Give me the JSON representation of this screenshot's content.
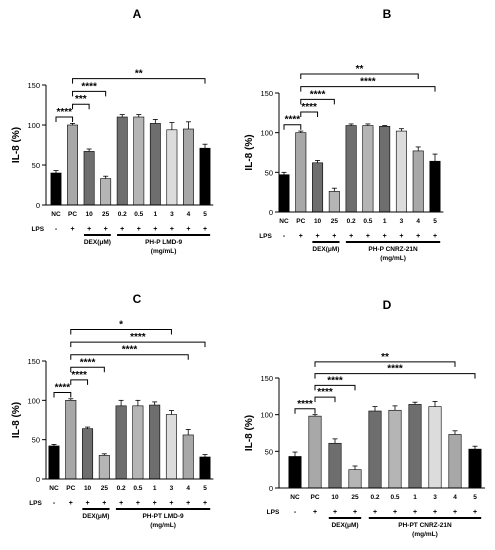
{
  "chart_data": [
    {
      "type": "bar",
      "title": "A",
      "ylabel": "IL-8 (%)",
      "xlabel": "",
      "ylim": [
        0,
        150
      ],
      "yticks": [
        "0",
        "50",
        "100",
        "150"
      ],
      "categories": [
        "NC",
        "PC",
        "10",
        "25",
        "0.2",
        "0.5",
        "1",
        "3",
        "4",
        "5"
      ],
      "values": [
        40,
        100,
        67,
        33,
        110,
        110,
        102,
        94,
        95,
        71
      ],
      "errors": [
        3,
        2,
        3,
        3,
        3,
        3,
        5,
        9,
        9,
        5
      ],
      "colors": [
        "#000000",
        "#a8a8a8",
        "#6e6e6e",
        "#b5b5b5",
        "#6e6e6e",
        "#b5b5b5",
        "#6e6e6e",
        "#dcdcdc",
        "#a8a8a8",
        "#000000"
      ],
      "lps_label": "LPS",
      "lps_signs": [
        "-",
        "+",
        "+",
        "+",
        "+",
        "+",
        "+",
        "+",
        "+",
        "+"
      ],
      "group_labels": [
        {
          "from": 2,
          "to": 3,
          "lines": [
            "DEX(μM)"
          ]
        },
        {
          "from": 4,
          "to": 9,
          "lines": [
            "PH-P LMD-9",
            "(mg/mL)"
          ]
        }
      ],
      "sig": [
        {
          "from": 0,
          "to": 1,
          "label": "****"
        },
        {
          "from": 1,
          "to": 2,
          "label": "***"
        },
        {
          "from": 1,
          "to": 3,
          "label": "****"
        },
        {
          "from": 1,
          "to": 9,
          "label": "**"
        }
      ]
    },
    {
      "type": "bar",
      "title": "B",
      "ylabel": "IL-8 (%)",
      "xlabel": "",
      "ylim": [
        0,
        150
      ],
      "yticks": [
        "0",
        "50",
        "100",
        "150"
      ],
      "categories": [
        "NC",
        "PC",
        "10",
        "25",
        "0.2",
        "0.5",
        "1",
        "3",
        "4",
        "5"
      ],
      "values": [
        47,
        100,
        62,
        26,
        109,
        109,
        108,
        102,
        77,
        64
      ],
      "errors": [
        3,
        2,
        3,
        4,
        2,
        2,
        1,
        3,
        5,
        9
      ],
      "colors": [
        "#000000",
        "#a8a8a8",
        "#6e6e6e",
        "#b5b5b5",
        "#6e6e6e",
        "#b5b5b5",
        "#6e6e6e",
        "#dcdcdc",
        "#a8a8a8",
        "#000000"
      ],
      "lps_label": "LPS",
      "lps_signs": [
        "-",
        "+",
        "+",
        "+",
        "+",
        "+",
        "+",
        "+",
        "+",
        "+"
      ],
      "group_labels": [
        {
          "from": 2,
          "to": 3,
          "lines": [
            "DEX(μM)"
          ]
        },
        {
          "from": 4,
          "to": 9,
          "lines": [
            "PH-P CNRZ-21N",
            "(mg/mL)"
          ]
        }
      ],
      "sig": [
        {
          "from": 0,
          "to": 1,
          "label": "****"
        },
        {
          "from": 1,
          "to": 2,
          "label": "****"
        },
        {
          "from": 1,
          "to": 3,
          "label": "****"
        },
        {
          "from": 1,
          "to": 9,
          "label": "****"
        },
        {
          "from": 1,
          "to": 8,
          "label": "**"
        }
      ]
    },
    {
      "type": "bar",
      "title": "C",
      "ylabel": "IL-8 (%)",
      "xlabel": "",
      "ylim": [
        0,
        150
      ],
      "yticks": [
        "0",
        "50",
        "100",
        "150"
      ],
      "categories": [
        "NC",
        "PC",
        "10",
        "25",
        "0.2",
        "0.5",
        "1",
        "3",
        "4",
        "5"
      ],
      "values": [
        42,
        100,
        64,
        30,
        93,
        93,
        94,
        82,
        56,
        28
      ],
      "errors": [
        2,
        2,
        2,
        2,
        7,
        7,
        4,
        5,
        7,
        3
      ],
      "colors": [
        "#000000",
        "#a8a8a8",
        "#6e6e6e",
        "#b5b5b5",
        "#6e6e6e",
        "#b5b5b5",
        "#6e6e6e",
        "#dcdcdc",
        "#a8a8a8",
        "#000000"
      ],
      "lps_label": "LPS",
      "lps_signs": [
        "-",
        "+",
        "+",
        "+",
        "+",
        "+",
        "+",
        "+",
        "+",
        "+"
      ],
      "group_labels": [
        {
          "from": 2,
          "to": 3,
          "lines": [
            "DEX(μM)"
          ]
        },
        {
          "from": 4,
          "to": 9,
          "lines": [
            "PH-PT LMD-9",
            "(mg/mL)"
          ]
        }
      ],
      "sig": [
        {
          "from": 0,
          "to": 1,
          "label": "****"
        },
        {
          "from": 1,
          "to": 2,
          "label": "****"
        },
        {
          "from": 1,
          "to": 3,
          "label": "****"
        },
        {
          "from": 1,
          "to": 8,
          "label": "****"
        },
        {
          "from": 1,
          "to": 9,
          "label": "****"
        },
        {
          "from": 1,
          "to": 7,
          "label": "*"
        }
      ]
    },
    {
      "type": "bar",
      "title": "D",
      "ylabel": "IL-8 (%)",
      "xlabel": "",
      "ylim": [
        0,
        150
      ],
      "yticks": [
        "0",
        "50",
        "100",
        "150"
      ],
      "categories": [
        "NC",
        "PC",
        "10",
        "25",
        "0.2",
        "0.5",
        "1",
        "3",
        "4",
        "5"
      ],
      "values": [
        43,
        98,
        61,
        25,
        105,
        106,
        114,
        111,
        73,
        53
      ],
      "errors": [
        6,
        2,
        6,
        5,
        6,
        6,
        3,
        7,
        5,
        4
      ],
      "colors": [
        "#000000",
        "#a8a8a8",
        "#6e6e6e",
        "#b5b5b5",
        "#6e6e6e",
        "#b5b5b5",
        "#6e6e6e",
        "#dcdcdc",
        "#a8a8a8",
        "#000000"
      ],
      "lps_label": "LPS",
      "lps_signs": [
        "-",
        "+",
        "+",
        "+",
        "+",
        "+",
        "+",
        "+",
        "+",
        "+"
      ],
      "group_labels": [
        {
          "from": 2,
          "to": 3,
          "lines": [
            "DEX(μM)"
          ]
        },
        {
          "from": 4,
          "to": 9,
          "lines": [
            "PH-PT CNRZ-21N",
            "(mg/mL)"
          ]
        }
      ],
      "sig": [
        {
          "from": 0,
          "to": 1,
          "label": "****"
        },
        {
          "from": 1,
          "to": 2,
          "label": "****"
        },
        {
          "from": 1,
          "to": 3,
          "label": "****"
        },
        {
          "from": 1,
          "to": 9,
          "label": "****"
        },
        {
          "from": 1,
          "to": 8,
          "label": "**"
        }
      ]
    }
  ]
}
